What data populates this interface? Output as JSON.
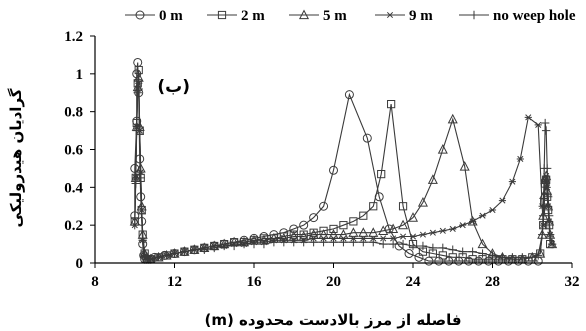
{
  "chart_data": {
    "type": "line",
    "title": "",
    "panel_label": "(ب)",
    "xlabel": "فاصله از مرز بالادست محدوده (m)",
    "ylabel": "گرادیان هیدرولیکی",
    "xlim": [
      8,
      32
    ],
    "ylim": [
      0,
      1.2
    ],
    "xticks": [
      8,
      12,
      16,
      20,
      24,
      28,
      32
    ],
    "yticks": [
      0,
      0.2,
      0.4,
      0.6,
      0.8,
      1,
      1.2
    ],
    "xtick_labels": [
      "8",
      "12",
      "16",
      "20",
      "24",
      "28",
      "32"
    ],
    "ytick_labels": [
      "0",
      "0.2",
      "0.4",
      "0.6",
      "0.8",
      "1",
      "1.2"
    ],
    "grid": false,
    "legend_position": "top",
    "series": [
      {
        "name": "0 m",
        "marker": "circle",
        "x": [
          10.0,
          10.0,
          10.1,
          10.1,
          10.15,
          10.2,
          10.25,
          10.3,
          10.35,
          10.4,
          10.45,
          10.5,
          10.6,
          10.7,
          10.8,
          11.0,
          11.5,
          12.0,
          12.5,
          13.0,
          13.5,
          14.0,
          14.5,
          15.0,
          15.5,
          16.0,
          16.5,
          17.0,
          17.5,
          18.0,
          18.5,
          19.0,
          19.5,
          20.0,
          20.8,
          21.7,
          22.3,
          22.8,
          23.3,
          23.8,
          24.3,
          24.8,
          25.3,
          25.8,
          26.3,
          26.8,
          27.3,
          27.8,
          28.3,
          28.8,
          29.3,
          29.8,
          30.3
        ],
        "y": [
          0.25,
          0.5,
          0.75,
          1.0,
          1.06,
          0.9,
          0.55,
          0.35,
          0.22,
          0.1,
          0.04,
          0.02,
          0.02,
          0.02,
          0.02,
          0.03,
          0.04,
          0.05,
          0.06,
          0.07,
          0.08,
          0.09,
          0.1,
          0.11,
          0.12,
          0.13,
          0.14,
          0.15,
          0.16,
          0.18,
          0.2,
          0.24,
          0.3,
          0.49,
          0.89,
          0.66,
          0.35,
          0.18,
          0.09,
          0.05,
          0.03,
          0.01,
          0.01,
          0.01,
          0.01,
          0.01,
          0.01,
          0.01,
          0.01,
          0.01,
          0.01,
          0.01,
          0.01
        ]
      },
      {
        "name": "2 m",
        "marker": "square",
        "x": [
          10.0,
          10.05,
          10.1,
          10.15,
          10.2,
          10.25,
          10.3,
          10.35,
          10.4,
          10.5,
          10.6,
          10.8,
          11.2,
          11.6,
          12.0,
          12.5,
          13.0,
          13.5,
          14.0,
          14.5,
          15.0,
          15.5,
          16.0,
          16.5,
          17.0,
          17.5,
          18.0,
          18.5,
          19.0,
          19.5,
          20.0,
          20.5,
          21.0,
          21.5,
          22.0,
          22.4,
          22.9,
          23.5,
          24.0,
          24.5,
          25.0,
          25.5,
          26.0,
          26.5,
          27.0,
          27.5,
          28.0,
          28.5,
          29.0,
          29.5,
          30.0,
          30.4,
          30.55,
          30.6,
          30.65,
          30.7,
          30.75,
          30.8,
          30.85,
          30.9
        ],
        "y": [
          0.22,
          0.45,
          0.74,
          0.95,
          1.02,
          0.7,
          0.45,
          0.28,
          0.15,
          0.05,
          0.02,
          0.02,
          0.03,
          0.04,
          0.05,
          0.06,
          0.07,
          0.08,
          0.09,
          0.1,
          0.11,
          0.11,
          0.12,
          0.13,
          0.13,
          0.14,
          0.15,
          0.15,
          0.16,
          0.17,
          0.18,
          0.2,
          0.22,
          0.25,
          0.3,
          0.47,
          0.84,
          0.3,
          0.1,
          0.06,
          0.05,
          0.04,
          0.03,
          0.03,
          0.02,
          0.02,
          0.02,
          0.02,
          0.02,
          0.02,
          0.03,
          0.05,
          0.2,
          0.32,
          0.42,
          0.44,
          0.35,
          0.28,
          0.2,
          0.1
        ]
      },
      {
        "name": "5 m",
        "marker": "triangle",
        "x": [
          10.0,
          10.05,
          10.1,
          10.15,
          10.2,
          10.25,
          10.3,
          10.35,
          10.4,
          10.5,
          10.6,
          10.8,
          11.2,
          11.6,
          12.0,
          12.5,
          13.0,
          13.5,
          14.0,
          14.5,
          15.0,
          15.5,
          16.0,
          16.5,
          17.0,
          17.5,
          18.0,
          18.5,
          19.0,
          19.5,
          20.0,
          20.5,
          21.0,
          21.5,
          22.0,
          22.5,
          23.0,
          23.5,
          24.0,
          24.5,
          25.0,
          25.5,
          26.0,
          26.6,
          27.0,
          27.5,
          28.0,
          28.5,
          29.0,
          29.5,
          30.0,
          30.4,
          30.5,
          30.55,
          30.6,
          30.65,
          30.7,
          30.75,
          30.8,
          30.85,
          30.9,
          31.0
        ],
        "y": [
          0.22,
          0.45,
          0.72,
          0.93,
          0.98,
          0.72,
          0.5,
          0.3,
          0.15,
          0.05,
          0.02,
          0.02,
          0.03,
          0.04,
          0.05,
          0.06,
          0.07,
          0.08,
          0.09,
          0.1,
          0.11,
          0.11,
          0.12,
          0.12,
          0.13,
          0.13,
          0.14,
          0.14,
          0.15,
          0.15,
          0.15,
          0.15,
          0.16,
          0.16,
          0.16,
          0.17,
          0.18,
          0.2,
          0.24,
          0.32,
          0.44,
          0.6,
          0.76,
          0.51,
          0.22,
          0.1,
          0.05,
          0.03,
          0.02,
          0.02,
          0.03,
          0.05,
          0.15,
          0.25,
          0.36,
          0.44,
          0.46,
          0.38,
          0.3,
          0.22,
          0.15,
          0.1
        ]
      },
      {
        "name": "9 m",
        "marker": "star",
        "x": [
          10.0,
          10.05,
          10.1,
          10.15,
          10.2,
          10.25,
          10.3,
          10.35,
          10.4,
          10.5,
          10.6,
          10.8,
          11.2,
          11.6,
          12.0,
          12.5,
          13.0,
          13.5,
          14.0,
          14.5,
          15.0,
          15.5,
          16.0,
          16.5,
          17.0,
          17.5,
          18.0,
          18.5,
          19.0,
          19.5,
          20.0,
          20.5,
          21.0,
          21.5,
          22.0,
          22.5,
          23.0,
          23.5,
          24.0,
          24.5,
          25.0,
          25.5,
          26.0,
          26.5,
          27.0,
          27.5,
          28.0,
          28.5,
          29.0,
          29.4,
          29.8,
          30.3,
          30.5,
          30.55,
          30.6,
          30.65,
          30.7,
          30.75,
          30.8,
          30.85,
          30.9,
          31.0
        ],
        "y": [
          0.2,
          0.45,
          0.72,
          0.92,
          0.95,
          0.7,
          0.48,
          0.28,
          0.12,
          0.04,
          0.02,
          0.02,
          0.03,
          0.04,
          0.05,
          0.06,
          0.07,
          0.08,
          0.09,
          0.09,
          0.1,
          0.1,
          0.11,
          0.11,
          0.12,
          0.12,
          0.12,
          0.12,
          0.13,
          0.13,
          0.13,
          0.13,
          0.13,
          0.13,
          0.13,
          0.13,
          0.13,
          0.14,
          0.14,
          0.15,
          0.16,
          0.17,
          0.18,
          0.2,
          0.22,
          0.25,
          0.28,
          0.33,
          0.43,
          0.55,
          0.77,
          0.73,
          0.3,
          0.2,
          0.3,
          0.44,
          0.46,
          0.4,
          0.3,
          0.22,
          0.15,
          0.1
        ]
      },
      {
        "name": "no weep hole",
        "marker": "plus",
        "x": [
          10.0,
          10.05,
          10.1,
          10.15,
          10.2,
          10.25,
          10.3,
          10.35,
          10.4,
          10.5,
          10.6,
          10.8,
          11.2,
          11.6,
          12.0,
          12.5,
          13.0,
          13.5,
          14.0,
          14.5,
          15.0,
          15.5,
          16.0,
          16.5,
          17.0,
          17.5,
          18.0,
          18.5,
          19.0,
          19.5,
          20.0,
          20.5,
          21.0,
          21.5,
          22.0,
          22.5,
          23.0,
          23.5,
          24.0,
          24.5,
          25.0,
          25.5,
          26.0,
          26.5,
          27.0,
          27.5,
          28.0,
          28.5,
          29.0,
          29.5,
          30.0,
          30.3,
          30.5,
          30.55,
          30.6,
          30.65,
          30.7,
          30.75,
          30.8,
          30.85,
          30.9,
          31.0
        ],
        "y": [
          0.2,
          0.42,
          0.7,
          0.9,
          0.92,
          0.68,
          0.45,
          0.26,
          0.12,
          0.04,
          0.02,
          0.02,
          0.03,
          0.04,
          0.05,
          0.06,
          0.07,
          0.07,
          0.08,
          0.09,
          0.09,
          0.1,
          0.1,
          0.1,
          0.11,
          0.11,
          0.11,
          0.11,
          0.11,
          0.11,
          0.11,
          0.11,
          0.11,
          0.11,
          0.11,
          0.1,
          0.1,
          0.1,
          0.09,
          0.09,
          0.08,
          0.08,
          0.07,
          0.06,
          0.06,
          0.05,
          0.04,
          0.03,
          0.03,
          0.03,
          0.03,
          0.04,
          0.15,
          0.25,
          0.5,
          0.74,
          0.7,
          0.5,
          0.35,
          0.25,
          0.15,
          0.1
        ]
      }
    ]
  }
}
